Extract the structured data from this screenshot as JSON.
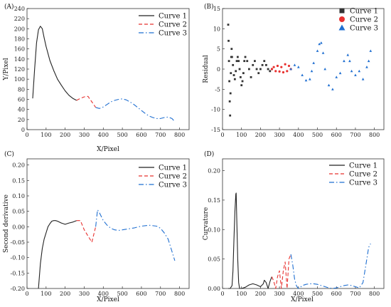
{
  "colors": {
    "curve1": "#222222",
    "curve2": "#e8312f",
    "curve3": "#1f6fd1"
  },
  "chart_data": [
    {
      "panel": "(A)",
      "type": "line",
      "xlabel": "X/Pixel",
      "ylabel": "Y/Pixel",
      "xlim": [
        0,
        850
      ],
      "ylim": [
        0,
        240
      ],
      "xticks": [
        "0",
        "100",
        "200",
        "300",
        "400",
        "500",
        "600",
        "700",
        "800"
      ],
      "yticks": [
        "0",
        "20",
        "40",
        "60",
        "80",
        "100",
        "120",
        "140",
        "160",
        "180",
        "200",
        "220",
        "240"
      ],
      "legend": "top-right",
      "series": [
        {
          "name": "Curve 1",
          "style": "solid",
          "color": "#222222",
          "x": [
            30,
            40,
            50,
            60,
            70,
            80,
            90,
            100,
            120,
            140,
            160,
            180,
            200,
            220,
            240,
            260
          ],
          "y": [
            62,
            120,
            172,
            198,
            205,
            200,
            182,
            165,
            137,
            117,
            100,
            88,
            77,
            68,
            62,
            58
          ]
        },
        {
          "name": "Curve 2",
          "style": "dashed",
          "color": "#e8312f",
          "x": [
            260,
            280,
            300,
            320,
            340,
            360
          ],
          "y": [
            58,
            62,
            65,
            66,
            55,
            44
          ]
        },
        {
          "name": "Curve 3",
          "style": "dashdot",
          "color": "#1f6fd1",
          "x": [
            360,
            380,
            400,
            420,
            440,
            460,
            480,
            500,
            520,
            540,
            560,
            580,
            600,
            620,
            640,
            660,
            680,
            700,
            720,
            740,
            760,
            770
          ],
          "y": [
            44,
            42,
            45,
            50,
            55,
            58,
            60,
            61,
            59,
            55,
            50,
            44,
            38,
            32,
            27,
            24,
            22,
            22,
            24,
            25,
            22,
            18
          ]
        }
      ]
    },
    {
      "panel": "(B)",
      "type": "scatter",
      "xlabel": "",
      "ylabel": "Residual",
      "xlim": [
        0,
        850
      ],
      "ylim": [
        -15,
        15
      ],
      "xticks": [
        "0",
        "100",
        "200",
        "300",
        "400",
        "500",
        "600",
        "700",
        "800"
      ],
      "yticks": [
        "-15",
        "-10",
        "-5",
        "0",
        "5",
        "10",
        "15"
      ],
      "legend": "top-right",
      "series": [
        {
          "name": "Curve 1",
          "marker": "square",
          "color": "#333333",
          "x": [
            30,
            32,
            34,
            36,
            38,
            40,
            42,
            44,
            46,
            48,
            50,
            55,
            60,
            65,
            70,
            75,
            80,
            85,
            90,
            95,
            100,
            105,
            110,
            115,
            120,
            130,
            140,
            150,
            160,
            170,
            180,
            190,
            200,
            210,
            220,
            230,
            240,
            250,
            260
          ],
          "y": [
            11,
            7,
            2,
            -3,
            -8,
            -11.5,
            -6,
            -1,
            3,
            5,
            3,
            1,
            -1.5,
            -2.5,
            -0.5,
            2,
            3,
            2,
            0,
            -2,
            -4,
            -3,
            -1,
            2,
            3,
            2,
            0,
            -2,
            1,
            2,
            0,
            -1,
            0,
            1,
            2,
            1,
            0,
            -0.5,
            0
          ]
        },
        {
          "name": "Curve 2",
          "marker": "circle",
          "color": "#e8312f",
          "x": [
            260,
            270,
            280,
            290,
            300,
            310,
            320,
            330,
            340,
            350,
            360
          ],
          "y": [
            0,
            0.5,
            -0.5,
            0.8,
            -0.6,
            0.5,
            -0.8,
            1.2,
            -0.5,
            0.8,
            0
          ]
        },
        {
          "name": "Curve 3",
          "marker": "triangle",
          "color": "#1f6fd1",
          "x": [
            360,
            380,
            400,
            420,
            440,
            460,
            470,
            480,
            500,
            510,
            520,
            530,
            540,
            560,
            580,
            600,
            620,
            640,
            660,
            670,
            680,
            700,
            720,
            740,
            760,
            770,
            780
          ],
          "y": [
            0,
            1,
            0.5,
            -1.5,
            -2.8,
            -2.5,
            -0.5,
            1.5,
            4.5,
            6.2,
            6.5,
            4,
            0,
            -4,
            -5,
            -2,
            -1,
            2,
            3.5,
            2,
            -0.5,
            -1.5,
            -0.5,
            -2.5,
            0.5,
            2,
            4.5
          ]
        }
      ]
    },
    {
      "panel": "(C)",
      "type": "line",
      "xlabel": "X/Pixel",
      "ylabel": "Second derivative",
      "xlim": [
        0,
        850
      ],
      "ylim": [
        -0.2,
        0.22
      ],
      "xticks": [
        "0",
        "100",
        "200",
        "300",
        "400",
        "500",
        "600",
        "700",
        "800"
      ],
      "yticks": [
        "-0.20",
        "-0.15",
        "-0.10",
        "-0.05",
        "0.00",
        "0.05",
        "0.10",
        "0.15",
        "0.20"
      ],
      "legend": "top-right",
      "series": [
        {
          "name": "Curve 1",
          "style": "solid",
          "color": "#222222",
          "x": [
            60,
            70,
            80,
            90,
            100,
            110,
            120,
            130,
            140,
            150,
            160,
            180,
            200,
            220,
            240,
            260
          ],
          "y": [
            -0.2,
            -0.12,
            -0.07,
            -0.04,
            -0.02,
            0.0,
            0.01,
            0.018,
            0.02,
            0.02,
            0.018,
            0.012,
            0.008,
            0.012,
            0.015,
            0.02
          ]
        },
        {
          "name": "Curve 2",
          "style": "dashed",
          "color": "#e8312f",
          "x": [
            260,
            280,
            300,
            320,
            340,
            360
          ],
          "y": [
            0.02,
            0.02,
            -0.01,
            -0.03,
            -0.05,
            0.0
          ]
        },
        {
          "name": "Curve 3",
          "style": "dashdot",
          "color": "#1f6fd1",
          "x": [
            360,
            370,
            380,
            400,
            420,
            440,
            460,
            480,
            500,
            520,
            560,
            600,
            640,
            680,
            700,
            720,
            740,
            760,
            775
          ],
          "y": [
            0.0,
            0.055,
            0.045,
            0.02,
            0.005,
            -0.005,
            -0.01,
            -0.012,
            -0.01,
            -0.008,
            -0.004,
            0.002,
            0.005,
            0.002,
            -0.005,
            -0.02,
            -0.04,
            -0.08,
            -0.11
          ]
        }
      ]
    },
    {
      "panel": "(D)",
      "type": "line",
      "xlabel": "X/Pixel",
      "ylabel": "Curvature",
      "xlim": [
        0,
        850
      ],
      "ylim": [
        0,
        0.22
      ],
      "xticks": [
        "0",
        "100",
        "200",
        "300",
        "400",
        "500",
        "600",
        "700",
        "800"
      ],
      "yticks": [
        "0.00",
        "0.05",
        "0.10",
        "0.15",
        "0.20"
      ],
      "legend": "top-right",
      "series": [
        {
          "name": "Curve 1",
          "style": "solid",
          "color": "#222222",
          "x": [
            30,
            40,
            50,
            55,
            60,
            65,
            70,
            72,
            75,
            80,
            85,
            90,
            100,
            120,
            140,
            160,
            180,
            200,
            215,
            220,
            230,
            240,
            250,
            260
          ],
          "y": [
            0.0,
            0.0,
            0.005,
            0.03,
            0.08,
            0.13,
            0.16,
            0.162,
            0.12,
            0.05,
            0.01,
            0.0,
            0.0,
            0.002,
            0.006,
            0.008,
            0.006,
            0.003,
            0.008,
            0.014,
            0.01,
            0.0,
            0.012,
            0.02
          ]
        },
        {
          "name": "Curve 2",
          "style": "dashed",
          "color": "#e8312f",
          "x": [
            260,
            270,
            280,
            290,
            300,
            310,
            320,
            330,
            340,
            350,
            360
          ],
          "y": [
            0.02,
            0.012,
            0.0,
            0.02,
            0.03,
            0.0,
            0.03,
            0.045,
            0.0,
            0.05,
            0.058
          ]
        },
        {
          "name": "Curve 3",
          "style": "dashdot",
          "color": "#1f6fd1",
          "x": [
            360,
            370,
            380,
            390,
            400,
            410,
            420,
            440,
            460,
            480,
            500,
            520,
            540,
            560,
            580,
            600,
            620,
            640,
            660,
            680,
            700,
            720,
            740,
            760,
            770,
            780
          ],
          "y": [
            0.058,
            0.04,
            0.015,
            0.004,
            0.0,
            0.002,
            0.005,
            0.007,
            0.008,
            0.008,
            0.007,
            0.005,
            0.003,
            0.001,
            0.0,
            0.001,
            0.003,
            0.005,
            0.006,
            0.005,
            0.003,
            0.001,
            0.01,
            0.05,
            0.07,
            0.076
          ]
        }
      ]
    }
  ]
}
